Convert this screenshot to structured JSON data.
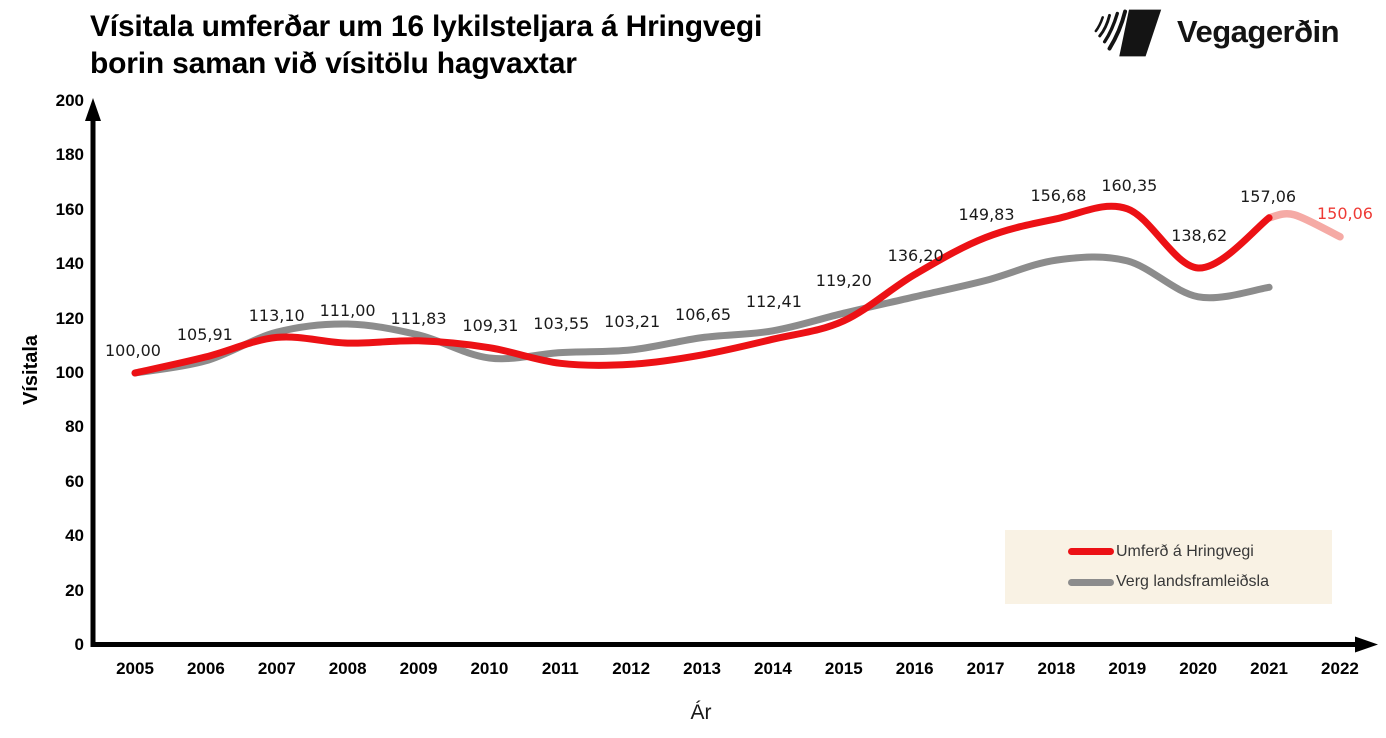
{
  "header": {
    "title_line1": "Vísitala umferðar um 16 lykilsteljara á Hringvegi",
    "title_line2": "borin saman við vísitölu hagvaxtar",
    "logo_text": "Vegagerðin"
  },
  "legend": {
    "background": "#f9f2e4",
    "items": [
      {
        "label": "Umferð á Hringvegi",
        "color": "#ec1115"
      },
      {
        "label": "Verg landsframleiðsla",
        "color": "#8c8c8c"
      }
    ]
  },
  "chart_data": {
    "type": "line",
    "title": "Vísitala umferðar um 16 lykilsteljara á Hringvegi borin saman við vísitölu hagvaxtar",
    "xlabel": "Ár",
    "ylabel": "Vísitala",
    "ylim": [
      0,
      200
    ],
    "ytick_step": 20,
    "yticks": [
      0,
      20,
      40,
      60,
      80,
      100,
      120,
      140,
      160,
      180,
      200
    ],
    "x": [
      2005,
      2006,
      2007,
      2008,
      2009,
      2010,
      2011,
      2012,
      2013,
      2014,
      2015,
      2016,
      2017,
      2018,
      2019,
      2020,
      2021,
      2022
    ],
    "grid": false,
    "legend_position": "lower-right",
    "series": [
      {
        "name": "Umferð á Hringvegi",
        "color": "#ec1115",
        "values": [
          100.0,
          105.91,
          113.1,
          111.0,
          111.83,
          109.31,
          103.55,
          103.21,
          106.65,
          112.41,
          119.2,
          136.2,
          149.83,
          156.68,
          160.35,
          138.62,
          157.06,
          150.06
        ],
        "point_labels": [
          "100,00",
          "105,91",
          "113,10",
          "111,00",
          "111,83",
          "109,31",
          "103,55",
          "103,21",
          "106,65",
          "112,41",
          "119,20",
          "136,20",
          "149,83",
          "156,68",
          "160,35",
          "138,62",
          "157,06",
          "150,06"
        ],
        "forecast_last_segment": true,
        "forecast_color": "#f5aaa5",
        "forecast_label_color": "#ee3a35"
      },
      {
        "name": "Verg landsframleiðsla",
        "color": "#8c8c8c",
        "values": [
          100,
          104.5,
          115,
          118,
          114,
          105.5,
          107.5,
          108.5,
          113,
          115.5,
          122,
          128,
          134,
          141.5,
          141.2,
          128,
          131.5
        ]
      }
    ]
  }
}
